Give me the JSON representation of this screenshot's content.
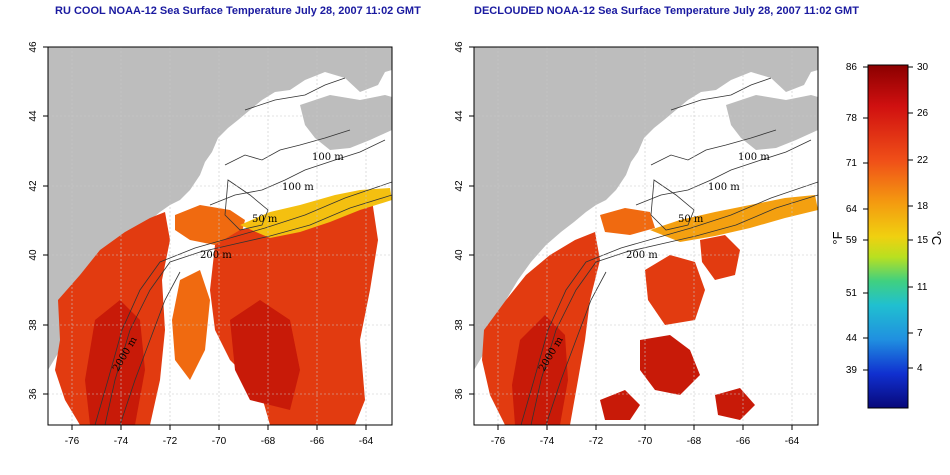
{
  "titles": {
    "left": "RU COOL NOAA-12 Sea Surface Temperature July 28, 2007 11:02 GMT",
    "right": "DECLOUDED NOAA-12 Sea Surface Temperature July 28, 2007 11:02 GMT"
  },
  "axes": {
    "x_ticks": [
      "-76",
      "-74",
      "-72",
      "-70",
      "-68",
      "-66",
      "-64"
    ],
    "y_ticks": [
      "46",
      "44",
      "42",
      "40",
      "38",
      "36"
    ]
  },
  "contour_labels": [
    "100 m",
    "100 m",
    "50 m",
    "200 m",
    "2000 m"
  ],
  "colorbar": {
    "fahrenheit_ticks": [
      "86",
      "78",
      "71",
      "64",
      "59",
      "51",
      "44",
      "39"
    ],
    "celsius_ticks": [
      "30",
      "26",
      "22",
      "18",
      "15",
      "11",
      "7",
      "4"
    ],
    "fahrenheit_unit": "°F",
    "celsius_unit": "°C"
  },
  "colors": {
    "land": "#bdbdbd",
    "title": "#1a1aa0",
    "grid": "#c8c8c8",
    "sst_warm": "#e23b10",
    "sst_hot": "#c81a08",
    "sst_mid": "#f06a10",
    "sst_cool": "#f4c010"
  }
}
